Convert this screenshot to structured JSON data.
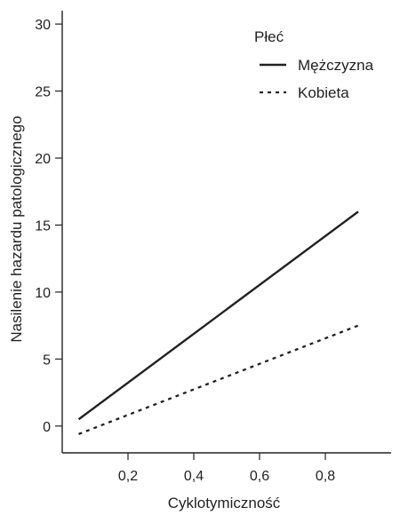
{
  "chart_data": {
    "type": "line",
    "xlabel": "Cyklotymiczność",
    "ylabel": "Nasilenie hazardu patologicznego",
    "xlim": [
      0,
      1.0
    ],
    "ylim": [
      -2,
      31
    ],
    "x_ticks": [
      0.2,
      0.4,
      0.6,
      0.8
    ],
    "x_tick_labels": [
      "0,2",
      "0,4",
      "0,6",
      "0,8"
    ],
    "y_ticks": [
      0,
      5,
      10,
      15,
      20,
      25,
      30
    ],
    "y_tick_labels": [
      "0",
      "5",
      "10",
      "15",
      "20",
      "25",
      "30"
    ],
    "grid": false,
    "legend": {
      "title": "Płeć",
      "placement": "top-right"
    },
    "series": [
      {
        "name": "Mężczyzna",
        "style": "solid",
        "color": "#222222",
        "x": [
          0.05,
          0.9
        ],
        "y": [
          0.5,
          16
        ]
      },
      {
        "name": "Kobieta",
        "style": "dashed",
        "color": "#222222",
        "x": [
          0.05,
          0.9
        ],
        "y": [
          -0.6,
          7.5
        ]
      }
    ]
  }
}
